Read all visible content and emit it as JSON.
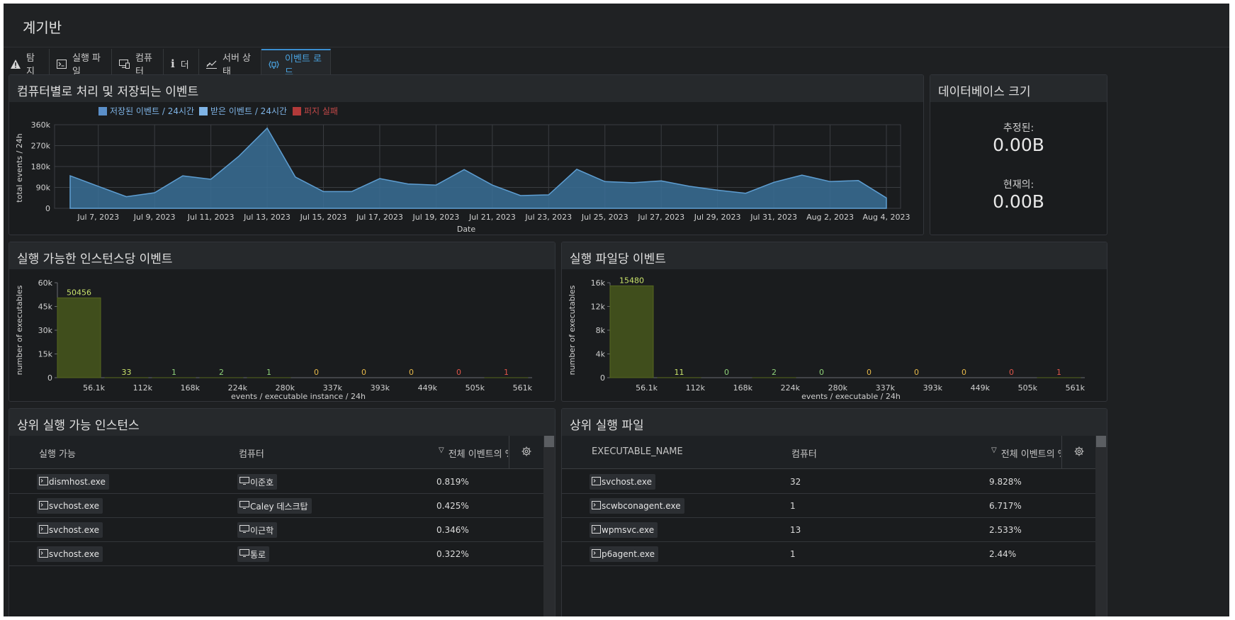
{
  "app": {
    "title": "계기반"
  },
  "tabs": [
    {
      "label": "탐지",
      "icon": "warning-icon"
    },
    {
      "label": "실행 파일",
      "icon": "terminal-icon"
    },
    {
      "label": "컴퓨터",
      "icon": "computer-icon"
    },
    {
      "label": "더",
      "icon": "info-icon"
    },
    {
      "label": "서버 상태",
      "icon": "server-status-icon"
    },
    {
      "label": "이벤트 로드",
      "icon": "event-load-icon",
      "active": true
    }
  ],
  "events_panel": {
    "title": "컴퓨터별로 처리 및 저장되는 이벤트",
    "legend": [
      {
        "label": "저장된 이벤트 / 24시간",
        "color": "#5b8fc9"
      },
      {
        "label": "받은 이벤트 / 24시간",
        "color": "#7fb4e6"
      },
      {
        "label": "퍼지 실패",
        "color": "#b23a3a"
      }
    ]
  },
  "db_panel": {
    "title": "데이터베이스 크기",
    "estimated_label": "추정된:",
    "estimated_value": "0.00B",
    "current_label": "현재의:",
    "current_value": "0.00B"
  },
  "instance_hist_panel": {
    "title": "실행 가능한 인스턴스당 이벤트"
  },
  "exe_hist_panel": {
    "title": "실행 파일당 이벤트"
  },
  "top_instances": {
    "title": "상위 실행 가능 인스턴스",
    "columns": [
      "실행 가능",
      "컴퓨터",
      "전체 이벤트의 %"
    ],
    "rows": [
      {
        "exe": "dismhost.exe",
        "computer": "이준호",
        "pct": "0.819%"
      },
      {
        "exe": "svchost.exe",
        "computer": "Caley 데스크탑",
        "pct": "0.425%"
      },
      {
        "exe": "svchost.exe",
        "computer": "이근학",
        "pct": "0.346%"
      },
      {
        "exe": "svchost.exe",
        "computer": "통로",
        "pct": "0.322%"
      }
    ]
  },
  "top_executables": {
    "title": "상위 실행 파일",
    "columns": [
      "EXECUTABLE_NAME",
      "컴퓨터",
      "전체 이벤트의 %"
    ],
    "rows": [
      {
        "exe": "svchost.exe",
        "computers": "32",
        "pct": "9.828%"
      },
      {
        "exe": "scwbconagent.exe",
        "computers": "1",
        "pct": "6.717%"
      },
      {
        "exe": "wpmsvc.exe",
        "computers": "13",
        "pct": "2.533%"
      },
      {
        "exe": "p6agent.exe",
        "computers": "1",
        "pct": "2.44%"
      }
    ]
  },
  "chart_data": [
    {
      "type": "area",
      "title": "",
      "xlabel": "Date",
      "ylabel": "total events / 24h",
      "ylim": [
        0,
        360000
      ],
      "y_ticks": [
        "0",
        "90k",
        "180k",
        "270k",
        "360k"
      ],
      "x_tick_labels": [
        "Jul 7, 2023",
        "Jul 9, 2023",
        "Jul 11, 2023",
        "Jul 13, 2023",
        "Jul 15, 2023",
        "Jul 17, 2023",
        "Jul 19, 2023",
        "Jul 21, 2023",
        "Jul 23, 2023",
        "Jul 25, 2023",
        "Jul 27, 2023",
        "Jul 29, 2023",
        "Jul 31, 2023",
        "Aug 2, 2023",
        "Aug 4, 2023"
      ],
      "grid": true,
      "legend_position": "top-left",
      "x": [
        "2023-07-06",
        "2023-07-07",
        "2023-07-08",
        "2023-07-09",
        "2023-07-10",
        "2023-07-11",
        "2023-07-12",
        "2023-07-13",
        "2023-07-14",
        "2023-07-15",
        "2023-07-16",
        "2023-07-17",
        "2023-07-18",
        "2023-07-19",
        "2023-07-20",
        "2023-07-21",
        "2023-07-22",
        "2023-07-23",
        "2023-07-24",
        "2023-07-25",
        "2023-07-26",
        "2023-07-27",
        "2023-07-28",
        "2023-07-29",
        "2023-07-30",
        "2023-07-31",
        "2023-08-01",
        "2023-08-02",
        "2023-08-03",
        "2023-08-04"
      ],
      "series": [
        {
          "name": "저장된 이벤트 / 24시간",
          "values": [
            140000,
            95000,
            50000,
            67000,
            140000,
            125000,
            225000,
            345000,
            135000,
            72000,
            72000,
            128000,
            105000,
            100000,
            167000,
            100000,
            55000,
            58000,
            168000,
            115000,
            110000,
            118000,
            95000,
            78000,
            65000,
            112000,
            143000,
            115000,
            120000,
            45000
          ]
        }
      ]
    },
    {
      "type": "bar",
      "title": "",
      "xlabel": "events / executable instance / 24h",
      "ylabel": "number of executables",
      "ylim": [
        0,
        60000
      ],
      "y_ticks": [
        "0",
        "15k",
        "30k",
        "45k",
        "60k"
      ],
      "categories": [
        "56.1k",
        "112k",
        "168k",
        "224k",
        "280k",
        "337k",
        "393k",
        "449k",
        "505k",
        "561k"
      ],
      "values": [
        50456,
        33,
        1,
        2,
        1,
        0,
        0,
        0,
        0,
        1
      ],
      "label_colors": [
        "#c9e36a",
        "#c9e36a",
        "#8fd27a",
        "#8fd27a",
        "#8fd27a",
        "#e6b84a",
        "#e6b84a",
        "#e6b84a",
        "#e0564a",
        "#e0564a"
      ]
    },
    {
      "type": "bar",
      "title": "",
      "xlabel": "events / executable / 24h",
      "ylabel": "number of executables",
      "ylim": [
        0,
        16000
      ],
      "y_ticks": [
        "0",
        "4k",
        "8k",
        "12k",
        "16k"
      ],
      "categories": [
        "56.1k",
        "112k",
        "168k",
        "224k",
        "280k",
        "337k",
        "393k",
        "449k",
        "505k",
        "561k"
      ],
      "values": [
        15480,
        11,
        0,
        2,
        0,
        0,
        0,
        0,
        0,
        1
      ],
      "label_colors": [
        "#c9e36a",
        "#c9e36a",
        "#8fd27a",
        "#8fd27a",
        "#8fd27a",
        "#e6b84a",
        "#e6b84a",
        "#e6b84a",
        "#e0564a",
        "#e0564a"
      ]
    }
  ]
}
